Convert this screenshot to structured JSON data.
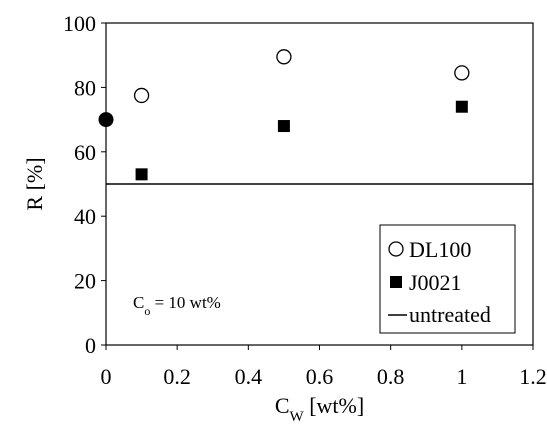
{
  "chart_data": {
    "type": "scatter",
    "xlabel": "C",
    "xlabel_sub": "W",
    "xlabel_unit": " [wt%]",
    "ylabel": "R [%]",
    "xlim": [
      0,
      1.2
    ],
    "ylim": [
      0,
      100
    ],
    "x_ticks": [
      "0",
      "0.2",
      "0.4",
      "0.6",
      "0.8",
      "1",
      "1.2"
    ],
    "y_ticks": [
      "0",
      "20",
      "40",
      "60",
      "80",
      "100"
    ],
    "grid": false,
    "legend_position": "bottom-right",
    "annotation": {
      "prefix": "C",
      "sub": "o",
      "suffix": " = 10 wt%"
    },
    "series": [
      {
        "name": "DL100",
        "marker": "open-circle",
        "points": [
          {
            "x": 0,
            "y": 70
          },
          {
            "x": 0.1,
            "y": 77.5
          },
          {
            "x": 0.5,
            "y": 89.5
          },
          {
            "x": 1.0,
            "y": 84.5
          }
        ]
      },
      {
        "name": "J0021",
        "marker": "filled-square",
        "points": [
          {
            "x": 0,
            "y": 70
          },
          {
            "x": 0.1,
            "y": 53
          },
          {
            "x": 0.5,
            "y": 68
          },
          {
            "x": 1.0,
            "y": 74
          }
        ]
      },
      {
        "name": "untreated",
        "marker": "line",
        "y": 50
      }
    ],
    "origin_marker": {
      "x": 0,
      "y": 70,
      "style": "filled-circle"
    }
  }
}
